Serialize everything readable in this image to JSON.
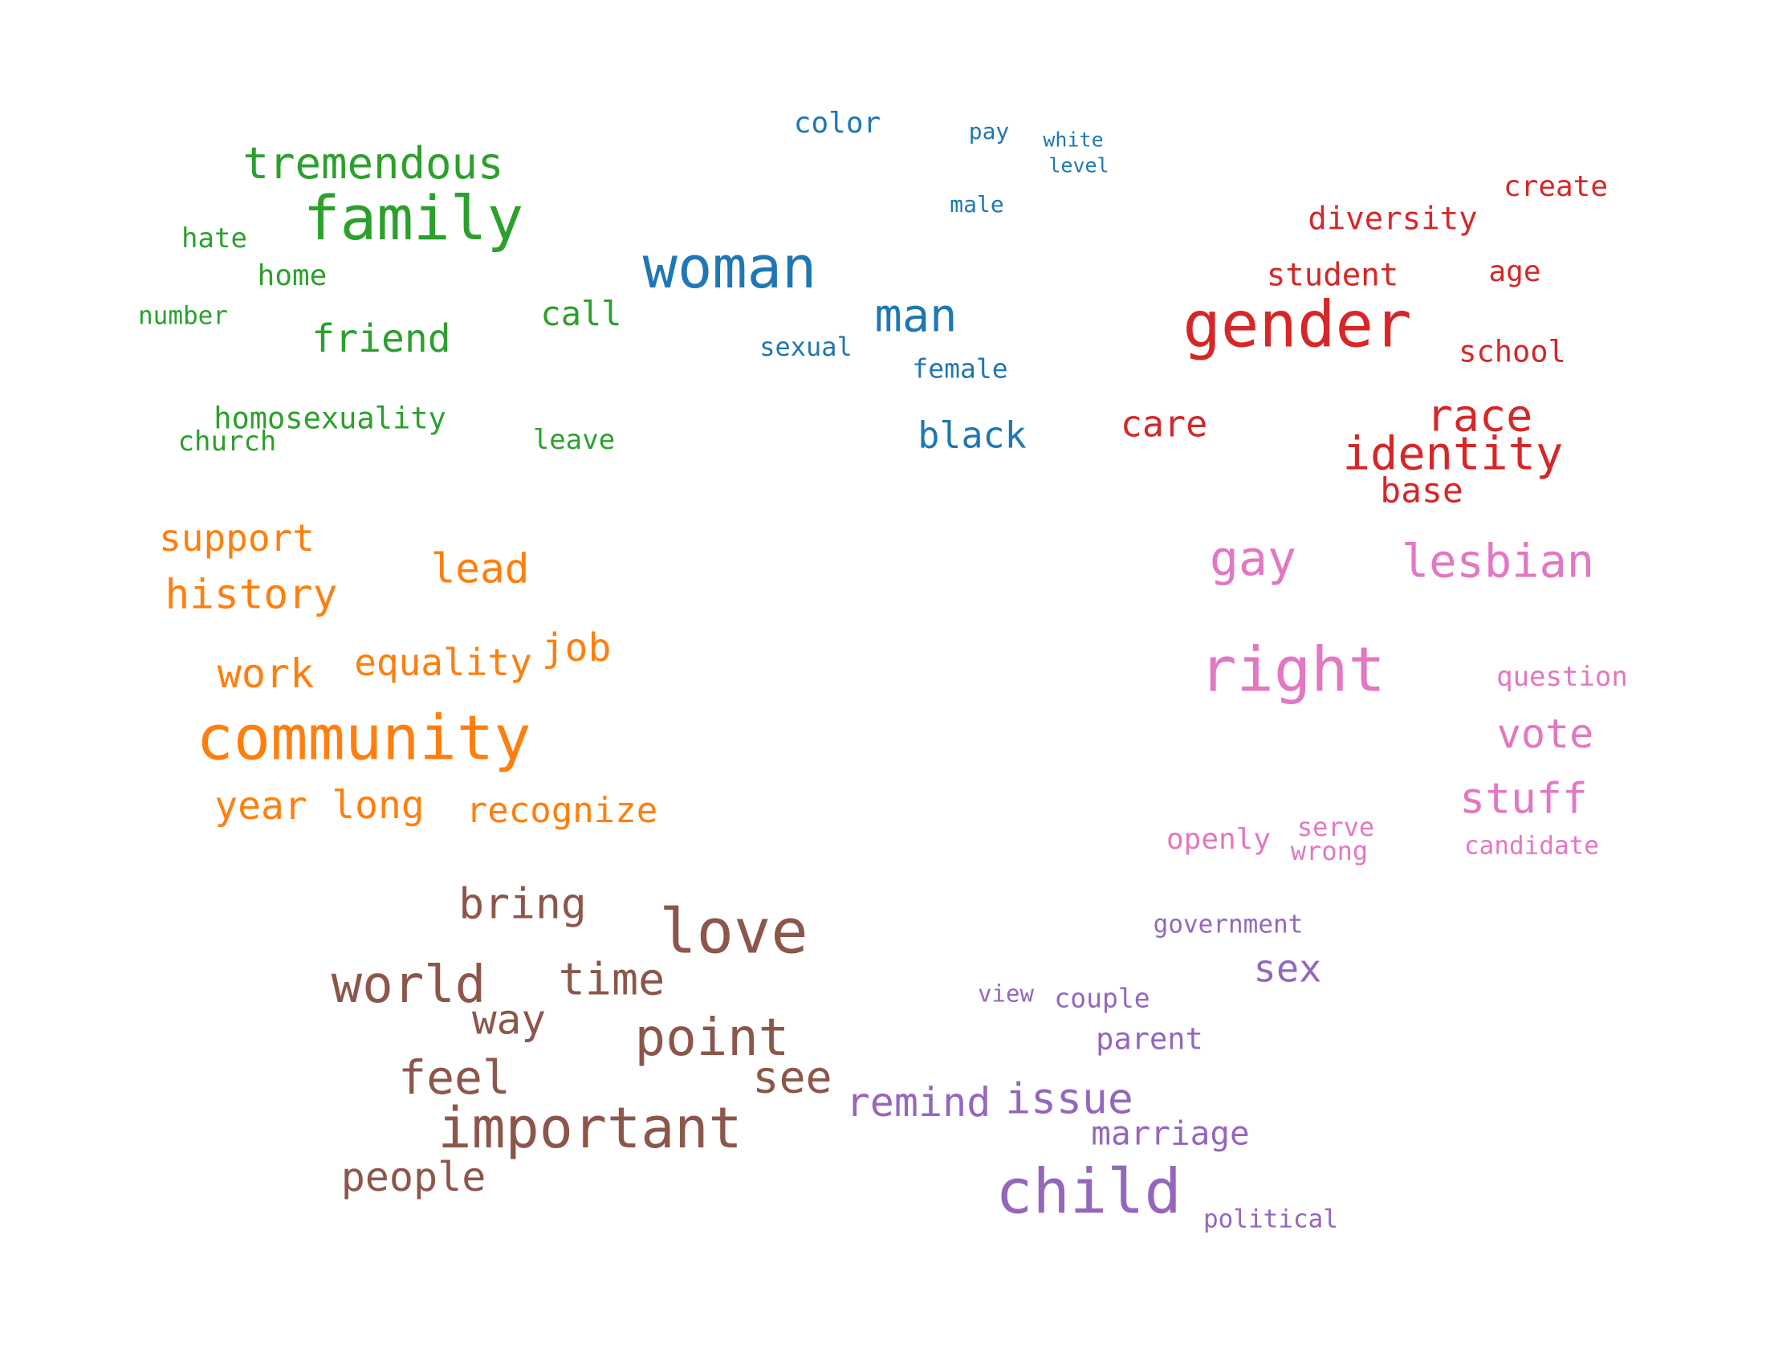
{
  "palette": {
    "green": "#2ca02c",
    "blue": "#1f77b4",
    "red": "#d62728",
    "orange": "#ff7f0e",
    "pink": "#e377c2",
    "brown": "#8c564b",
    "purple": "#9467bd"
  },
  "word_groups": [
    {
      "color": "green",
      "words": [
        "tremendous",
        "family",
        "hate",
        "home",
        "number",
        "friend",
        "call",
        "homosexuality",
        "church",
        "leave"
      ]
    },
    {
      "color": "blue",
      "words": [
        "color",
        "pay",
        "white",
        "level",
        "male",
        "woman",
        "man",
        "sexual",
        "female",
        "black"
      ]
    },
    {
      "color": "red",
      "words": [
        "create",
        "diversity",
        "student",
        "age",
        "gender",
        "school",
        "care",
        "race",
        "identity",
        "base"
      ]
    },
    {
      "color": "orange",
      "words": [
        "support",
        "lead",
        "history",
        "job",
        "equality",
        "work",
        "community",
        "year",
        "long",
        "recognize"
      ]
    },
    {
      "color": "pink",
      "words": [
        "gay",
        "lesbian",
        "right",
        "question",
        "vote",
        "stuff",
        "openly",
        "serve",
        "wrong",
        "candidate"
      ]
    },
    {
      "color": "brown",
      "words": [
        "bring",
        "love",
        "world",
        "time",
        "way",
        "point",
        "feel",
        "see",
        "important",
        "people"
      ]
    },
    {
      "color": "purple",
      "words": [
        "government",
        "sex",
        "view",
        "couple",
        "parent",
        "remind",
        "issue",
        "marriage",
        "child",
        "political"
      ]
    }
  ]
}
